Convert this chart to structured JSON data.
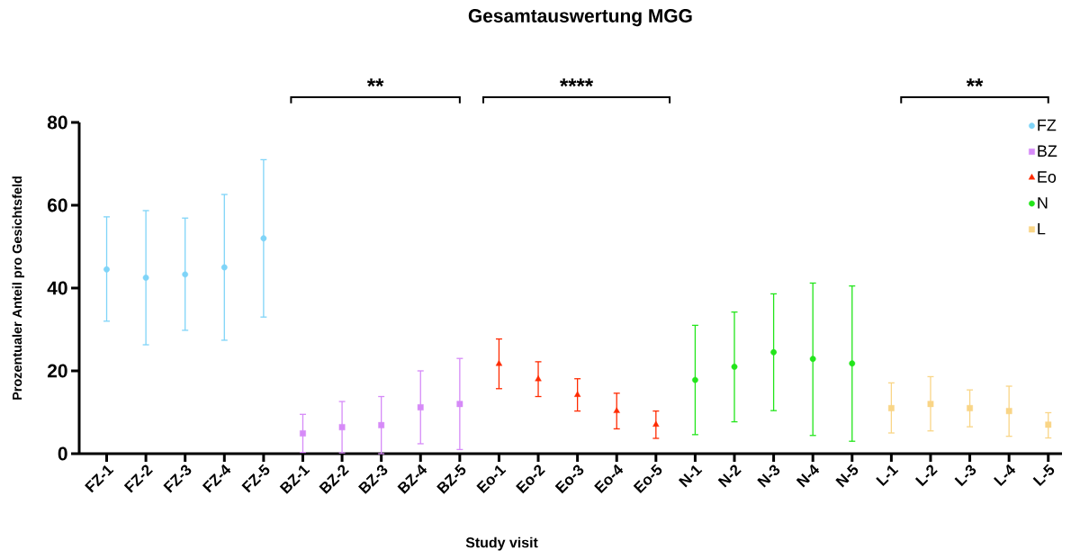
{
  "chart_data": {
    "type": "scatter",
    "title": "Gesamtauswertung MGG",
    "xlabel": "Study visit",
    "ylabel": "Prozentualer Anteil pro Gesichtsfeld",
    "categories": [
      "FZ-1",
      "FZ-2",
      "FZ-3",
      "FZ-4",
      "FZ-5",
      "BZ-1",
      "BZ-2",
      "BZ-3",
      "BZ-4",
      "BZ-5",
      "Eo-1",
      "Eo-2",
      "Eo-3",
      "Eo-4",
      "Eo-5",
      "N-1",
      "N-2",
      "N-3",
      "N-4",
      "N-5",
      "L-1",
      "L-2",
      "L-3",
      "L-4",
      "L-5"
    ],
    "series": [
      {
        "name": "FZ",
        "color": "#7fd4f8",
        "marker": "circle",
        "values": [
          44.5,
          42.5,
          43.3,
          45,
          52,
          null,
          null,
          null,
          null,
          null,
          null,
          null,
          null,
          null,
          null,
          null,
          null,
          null,
          null,
          null,
          null,
          null,
          null,
          null,
          null
        ],
        "errors": [
          [
            32,
            57.2
          ],
          [
            26.3,
            58.7
          ],
          [
            29.8,
            56.9
          ],
          [
            27.4,
            62.6
          ],
          [
            33,
            71
          ],
          null,
          null,
          null,
          null,
          null,
          null,
          null,
          null,
          null,
          null,
          null,
          null,
          null,
          null,
          null,
          null,
          null,
          null,
          null,
          null
        ]
      },
      {
        "name": "BZ",
        "color": "#d68af8",
        "marker": "square",
        "values": [
          null,
          null,
          null,
          null,
          null,
          4.9,
          6.4,
          6.9,
          11.2,
          12,
          null,
          null,
          null,
          null,
          null,
          null,
          null,
          null,
          null,
          null,
          null,
          null,
          null,
          null,
          null
        ],
        "errors": [
          null,
          null,
          null,
          null,
          null,
          [
            0.3,
            9.5
          ],
          [
            0.2,
            12.6
          ],
          [
            0,
            13.8
          ],
          [
            2.4,
            20
          ],
          [
            1,
            23
          ],
          null,
          null,
          null,
          null,
          null,
          null,
          null,
          null,
          null,
          null,
          null,
          null,
          null,
          null,
          null
        ]
      },
      {
        "name": "Eo",
        "color": "#ff2a00",
        "marker": "triangle",
        "values": [
          null,
          null,
          null,
          null,
          null,
          null,
          null,
          null,
          null,
          null,
          21.7,
          18,
          14.2,
          10.3,
          7,
          null,
          null,
          null,
          null,
          null,
          null,
          null,
          null,
          null,
          null
        ],
        "errors": [
          null,
          null,
          null,
          null,
          null,
          null,
          null,
          null,
          null,
          null,
          [
            15.7,
            27.7
          ],
          [
            13.8,
            22.2
          ],
          [
            10.3,
            18.1
          ],
          [
            6,
            14.6
          ],
          [
            3.7,
            10.3
          ],
          null,
          null,
          null,
          null,
          null,
          null,
          null,
          null,
          null,
          null
        ]
      },
      {
        "name": "N",
        "color": "#22e51a",
        "marker": "circle",
        "values": [
          null,
          null,
          null,
          null,
          null,
          null,
          null,
          null,
          null,
          null,
          null,
          null,
          null,
          null,
          null,
          17.8,
          21,
          24.5,
          22.9,
          21.8,
          null,
          null,
          null,
          null,
          null
        ],
        "errors": [
          null,
          null,
          null,
          null,
          null,
          null,
          null,
          null,
          null,
          null,
          null,
          null,
          null,
          null,
          null,
          [
            4.6,
            31
          ],
          [
            7.7,
            34.2
          ],
          [
            10.4,
            38.6
          ],
          [
            4.4,
            41.2
          ],
          [
            3,
            40.5
          ],
          null,
          null,
          null,
          null,
          null
        ]
      },
      {
        "name": "L",
        "color": "#f9d586",
        "marker": "square",
        "values": [
          null,
          null,
          null,
          null,
          null,
          null,
          null,
          null,
          null,
          null,
          null,
          null,
          null,
          null,
          null,
          null,
          null,
          null,
          null,
          null,
          11,
          12,
          11,
          10.3,
          7
        ],
        "errors": [
          null,
          null,
          null,
          null,
          null,
          null,
          null,
          null,
          null,
          null,
          null,
          null,
          null,
          null,
          null,
          null,
          null,
          null,
          null,
          null,
          [
            5,
            17.1
          ],
          [
            5.5,
            18.6
          ],
          [
            6.5,
            15.4
          ],
          [
            4.2,
            16.3
          ],
          [
            3.8,
            9.9
          ]
        ]
      }
    ],
    "ylim": [
      0,
      80
    ],
    "yticks": [
      0,
      20,
      40,
      60,
      80
    ],
    "grid": false,
    "legend": "top right",
    "annotations": [
      "**",
      "****",
      "**"
    ]
  }
}
